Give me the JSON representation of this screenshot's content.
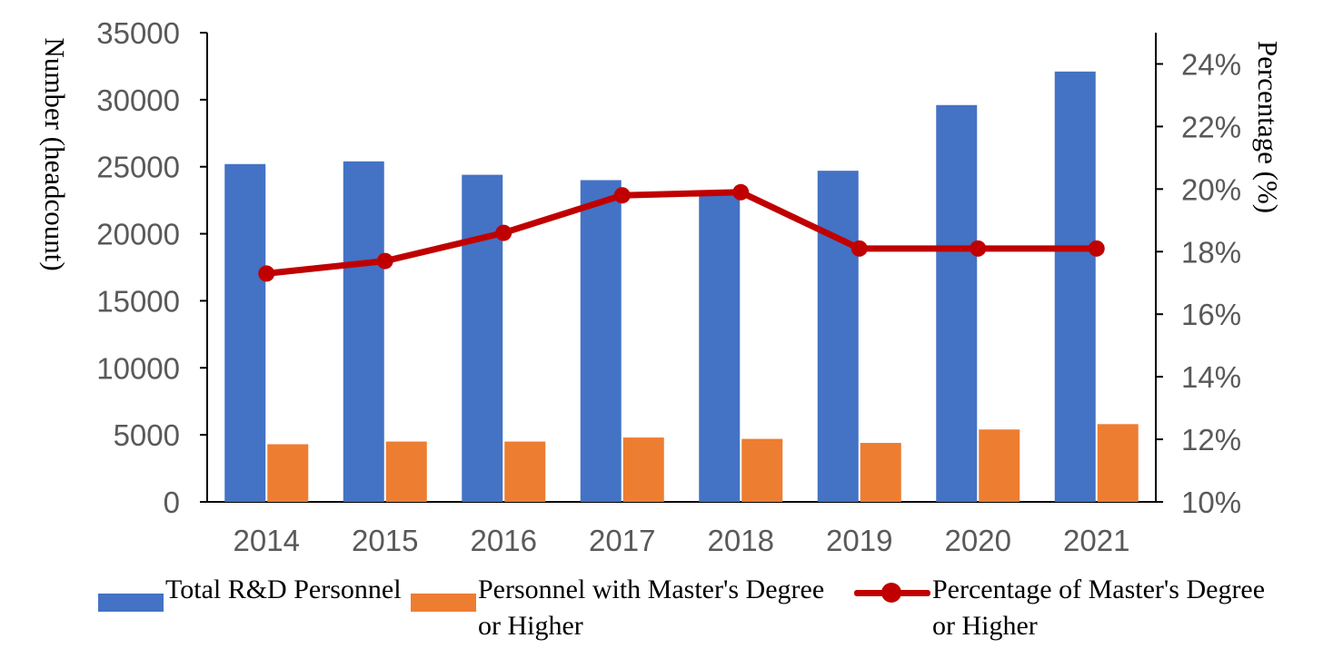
{
  "colors": {
    "total": "#4472C4",
    "masters": "#ED7D31",
    "percentage": "#C00000",
    "axis": "#000000"
  },
  "chart_data": {
    "type": "bar",
    "categories": [
      "2014",
      "2015",
      "2016",
      "2017",
      "2018",
      "2019",
      "2020",
      "2021"
    ],
    "series": [
      {
        "name": "Total R&D Personnel",
        "type": "bar",
        "axis": "left",
        "values": [
          25200,
          25400,
          24400,
          24000,
          22900,
          24700,
          29600,
          32100
        ]
      },
      {
        "name": "Personnel with Master's Degree or Higher",
        "type": "bar",
        "axis": "left",
        "values": [
          4300,
          4500,
          4500,
          4800,
          4700,
          4400,
          5400,
          5800
        ]
      },
      {
        "name": "Percentage of Master's Degree or Higher",
        "type": "line",
        "axis": "right",
        "values": [
          17.3,
          17.7,
          18.6,
          19.8,
          19.9,
          18.1,
          18.1,
          18.1
        ]
      }
    ],
    "title": "",
    "xlabel": "",
    "ylabel": "Number (headcount)",
    "y2label": "Percentage (%)",
    "ylim": [
      0,
      35000
    ],
    "y2lim": [
      10,
      25
    ],
    "yticks": [
      "0",
      "5000",
      "10000",
      "15000",
      "20000",
      "25000",
      "30000",
      "35000"
    ],
    "y2ticks": [
      "10%",
      "12%",
      "14%",
      "16%",
      "18%",
      "20%",
      "22%",
      "24%"
    ],
    "grid": false,
    "legend_position": "bottom"
  },
  "legend": {
    "total_label": "Total R&D Personnel",
    "masters_label_line1": "Personnel with Master's Degree",
    "masters_label_line2": "or Higher",
    "percentage_label_line1": "Percentage of Master's Degree",
    "percentage_label_line2": "or Higher"
  }
}
